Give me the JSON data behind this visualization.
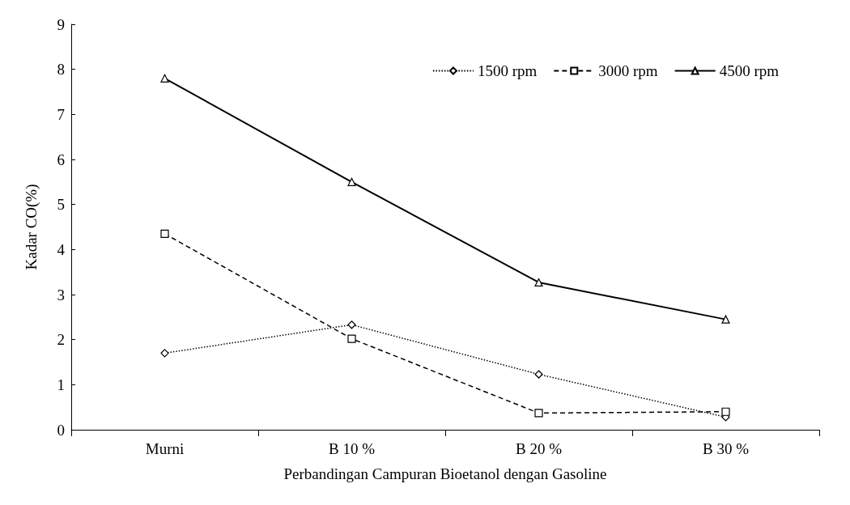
{
  "chart_data": {
    "type": "line",
    "xlabel": "Perbandingan Campuran Bioetanol dengan Gasoline",
    "ylabel": "Kadar CO(%)",
    "categories": [
      "Murni",
      "B 10 %",
      "B 20 %",
      "B 30 %"
    ],
    "series": [
      {
        "name": "1500 rpm",
        "color": "#000000",
        "marker": "diamond",
        "line_style": "dotted",
        "values": [
          1.7,
          2.33,
          1.23,
          0.28
        ]
      },
      {
        "name": "3000 rpm",
        "color": "#000000",
        "marker": "square",
        "line_style": "dashed",
        "values": [
          4.35,
          2.02,
          0.37,
          0.4
        ]
      },
      {
        "name": "4500 rpm",
        "color": "#000000",
        "marker": "triangle",
        "line_style": "solid",
        "values": [
          7.8,
          5.5,
          3.27,
          2.45
        ]
      }
    ],
    "ylim": [
      0,
      9
    ],
    "yticks": [
      0,
      1,
      2,
      3,
      4,
      5,
      6,
      7,
      8,
      9
    ],
    "grid": false,
    "legend": "top right"
  }
}
